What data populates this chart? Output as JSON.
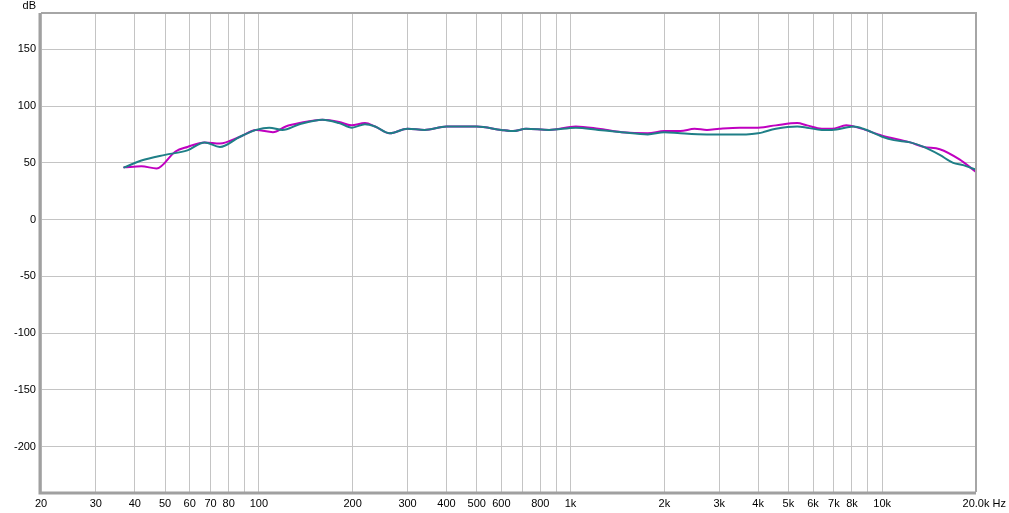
{
  "chart_data": {
    "type": "line",
    "xlabel": "Hz",
    "ylabel": "dB",
    "log": "x",
    "grid": true,
    "marker": "none",
    "xlim": [
      20,
      20000
    ],
    "ylim": [
      -240,
      182
    ],
    "xticks": [
      20,
      30,
      40,
      50,
      60,
      70,
      80,
      {
        "value": 90,
        "label": null
      },
      100,
      200,
      300,
      400,
      500,
      600,
      {
        "value": 700,
        "label": null
      },
      800,
      {
        "value": 900,
        "label": null
      },
      {
        "value": 1000,
        "label": "1k"
      },
      {
        "value": 2000,
        "label": "2k"
      },
      {
        "value": 3000,
        "label": "3k"
      },
      {
        "value": 4000,
        "label": "4k"
      },
      {
        "value": 5000,
        "label": "5k"
      },
      {
        "value": 6000,
        "label": "6k"
      },
      {
        "value": 7000,
        "label": "7k"
      },
      {
        "value": 8000,
        "label": "8k"
      },
      {
        "value": 9000,
        "label": null
      },
      {
        "value": 10000,
        "label": "10k"
      },
      {
        "value": 20000,
        "label": "20.0k"
      }
    ],
    "yticks": [
      -200,
      -150,
      -100,
      -50,
      0,
      50,
      100,
      150
    ],
    "series": [
      {
        "color": "#c000c0",
        "x": [
          37,
          42,
          47,
          54,
          59,
          67,
          75,
          87,
          98,
          111,
          122,
          135,
          160,
          181,
          198,
          219,
          236,
          263,
          300,
          340,
          400,
          471,
          500,
          600,
          654,
          720,
          854,
          1040,
          1230,
          1460,
          1770,
          2000,
          2250,
          2500,
          2740,
          3000,
          3490,
          4000,
          4560,
          5340,
          5740,
          6400,
          6900,
          7670,
          8360,
          10000,
          12300,
          13600,
          15300,
          17700,
          20000
        ],
        "values": [
          46,
          47,
          45,
          60,
          64,
          68,
          67,
          73,
          79,
          77,
          82,
          85,
          88,
          86,
          83,
          85,
          82,
          76,
          80,
          79,
          82,
          82,
          82,
          79,
          78,
          80,
          79,
          82,
          80,
          77,
          76,
          78,
          78,
          80,
          79,
          80,
          81,
          81,
          83,
          85,
          83,
          80,
          80,
          83,
          81,
          74,
          68,
          64,
          62,
          53,
          42
        ]
      },
      {
        "color": "#1f7f87",
        "x": [
          37,
          42,
          50,
          59,
          67,
          75,
          87,
          98,
          108,
          119,
          135,
          160,
          181,
          199,
          219,
          236,
          263,
          300,
          340,
          400,
          471,
          500,
          600,
          654,
          720,
          854,
          1040,
          1230,
          1460,
          1770,
          2000,
          2250,
          2740,
          3000,
          3660,
          4000,
          4560,
          5340,
          5740,
          6400,
          6900,
          8100,
          8700,
          10000,
          10900,
          12300,
          13600,
          15300,
          16900,
          18200,
          20000
        ],
        "values": [
          46,
          52,
          57,
          61,
          68,
          64,
          73,
          79,
          81,
          79,
          84,
          88,
          85,
          81,
          84,
          82,
          76,
          80,
          79,
          82,
          82,
          82,
          79,
          78,
          80,
          79,
          81,
          79,
          77,
          75,
          77,
          76,
          75,
          75,
          75,
          76,
          80,
          82,
          81,
          79,
          79,
          82,
          80,
          73,
          70,
          68,
          64,
          57,
          50,
          48,
          44
        ]
      }
    ]
  }
}
